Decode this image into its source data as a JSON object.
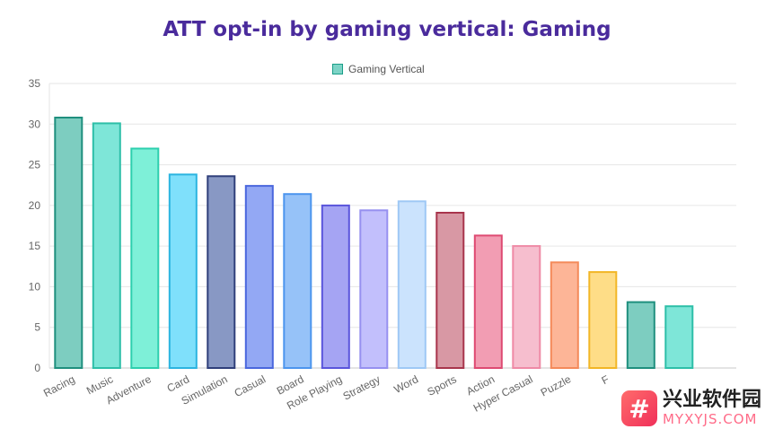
{
  "chart_data": {
    "type": "bar",
    "title": "ATT opt-in by gaming vertical: Gaming",
    "legend": {
      "label": "Gaming Vertical",
      "placement": "top-center",
      "color": "#7dd3c6"
    },
    "categories": [
      "Racing",
      "Music",
      "Adventure",
      "Card",
      "Simulation",
      "Casual",
      "Board",
      "Role Playing",
      "Strategy",
      "Word",
      "Sports",
      "Action",
      "Hyper Casual",
      "Puzzle",
      "F",
      "",
      ""
    ],
    "values": [
      30.8,
      30.1,
      27.0,
      23.8,
      23.6,
      22.4,
      21.4,
      20.0,
      19.4,
      20.5,
      19.1,
      16.3,
      15.0,
      13.0,
      11.8,
      8.1,
      7.6
    ],
    "ylim": [
      0,
      35
    ],
    "yticks": [
      0,
      5,
      10,
      15,
      20,
      25,
      30,
      35
    ],
    "grid": true,
    "colors": [
      {
        "fill": "#7dcdc0",
        "stroke": "#1f8f7e"
      },
      {
        "fill": "#7ee6d8",
        "stroke": "#2dbfa8"
      },
      {
        "fill": "#7ef0d8",
        "stroke": "#2dcfae"
      },
      {
        "fill": "#7fe0fb",
        "stroke": "#2bb4e0"
      },
      {
        "fill": "#8898c4",
        "stroke": "#2f3f7a"
      },
      {
        "fill": "#93a8f4",
        "stroke": "#4a67dd"
      },
      {
        "fill": "#96c2f8",
        "stroke": "#4c95ee"
      },
      {
        "fill": "#a5a4f3",
        "stroke": "#5a55dc"
      },
      {
        "fill": "#c2bffc",
        "stroke": "#9690f0"
      },
      {
        "fill": "#cbe3fd",
        "stroke": "#9ec8f5"
      },
      {
        "fill": "#d898a4",
        "stroke": "#a8354c"
      },
      {
        "fill": "#f29db3",
        "stroke": "#de4a72"
      },
      {
        "fill": "#f6bece",
        "stroke": "#ef8aa6"
      },
      {
        "fill": "#fdb597",
        "stroke": "#f48a5a"
      },
      {
        "fill": "#fedd87",
        "stroke": "#f2b626"
      },
      {
        "fill": "#7dcdc0",
        "stroke": "#1f8f7e"
      },
      {
        "fill": "#7ee6d8",
        "stroke": "#2dbfa8"
      }
    ]
  },
  "watermark": {
    "cn": "兴业软件园",
    "en": "MYXYJS.COM",
    "logo": "#"
  }
}
